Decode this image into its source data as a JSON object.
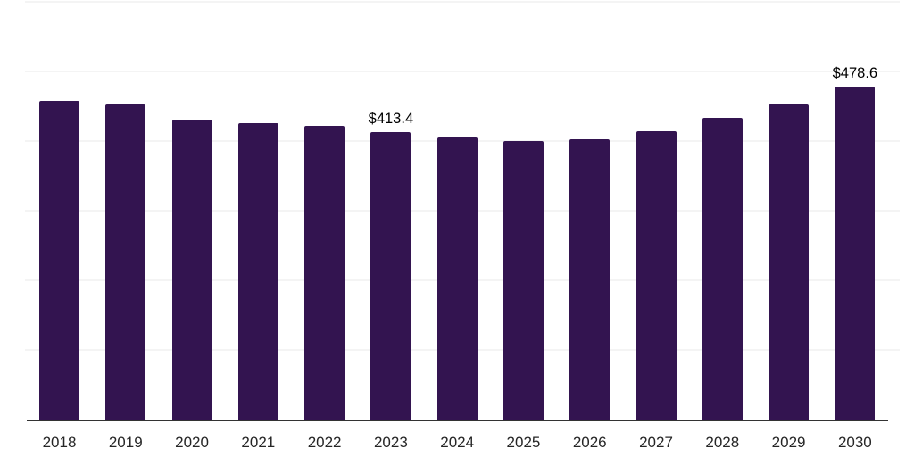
{
  "chart_data": {
    "type": "bar",
    "title": "",
    "xlabel": "",
    "ylabel": "",
    "categories": [
      "2018",
      "2019",
      "2020",
      "2021",
      "2022",
      "2023",
      "2024",
      "2025",
      "2026",
      "2027",
      "2028",
      "2029",
      "2030"
    ],
    "values": [
      457.5,
      452.1,
      430.8,
      425.5,
      421.3,
      413.4,
      404.7,
      399.6,
      402.2,
      413.6,
      432.7,
      452.6,
      478.6
    ],
    "bar_labels": [
      "",
      "",
      "",
      "",
      "",
      "$413.4",
      "",
      "",
      "",
      "",
      "",
      "",
      "$478.6"
    ],
    "ylim": [
      0,
      600
    ],
    "gridline_step": 100,
    "grid": "horizontal-only",
    "y_tick_labels_visible": false,
    "legend": "none",
    "colors": {
      "bar": "#331450",
      "axis_line": "#333333",
      "gridline": "#f4f4f4",
      "data_label": "#000000",
      "tick_label": "#262626",
      "background": "#ffffff"
    }
  }
}
